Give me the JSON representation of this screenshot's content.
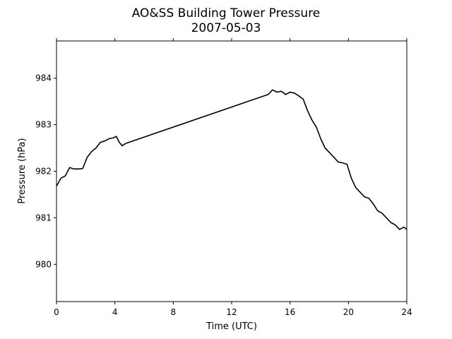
{
  "chart_data": {
    "type": "line",
    "title": "AO&SS Building Tower Pressure",
    "subtitle": "2007-05-03",
    "xlabel": "Time (UTC)",
    "ylabel": "Pressure (hPa)",
    "xlim": [
      0,
      24
    ],
    "ylim": [
      979.2,
      984.8
    ],
    "xticks": [
      0,
      4,
      8,
      12,
      16,
      20,
      24
    ],
    "yticks": [
      980,
      981,
      982,
      983,
      984
    ],
    "grid": false,
    "line_color": "#000000",
    "series": [
      {
        "x": [
          0.0,
          0.3,
          0.6,
          0.9,
          1.2,
          1.6,
          1.8,
          2.1,
          2.4,
          2.7,
          3.0,
          3.3,
          3.6,
          3.9,
          4.1,
          4.3,
          4.5,
          4.75,
          14.5,
          14.8,
          15.1,
          15.4,
          15.7,
          16.0,
          16.3,
          16.6,
          16.9,
          17.2,
          17.5,
          17.8,
          18.1,
          18.4,
          18.7,
          19.0,
          19.3,
          19.6,
          19.9,
          20.2,
          20.5,
          20.8,
          21.1,
          21.4,
          21.7,
          22.0,
          22.3,
          22.6,
          22.9,
          23.2,
          23.5,
          23.8,
          24.0
        ],
        "y": [
          981.68,
          981.85,
          981.9,
          982.08,
          982.05,
          982.05,
          982.06,
          982.3,
          982.42,
          982.5,
          982.62,
          982.65,
          982.7,
          982.72,
          982.75,
          982.62,
          982.55,
          982.6,
          983.65,
          983.75,
          983.7,
          983.72,
          983.65,
          983.7,
          983.68,
          983.62,
          983.55,
          983.3,
          983.1,
          982.95,
          982.7,
          982.5,
          982.4,
          982.3,
          982.2,
          982.18,
          982.15,
          981.85,
          981.65,
          981.55,
          981.45,
          981.42,
          981.3,
          981.15,
          981.1,
          981.0,
          980.9,
          980.85,
          980.75,
          980.8,
          980.75
        ]
      }
    ]
  }
}
